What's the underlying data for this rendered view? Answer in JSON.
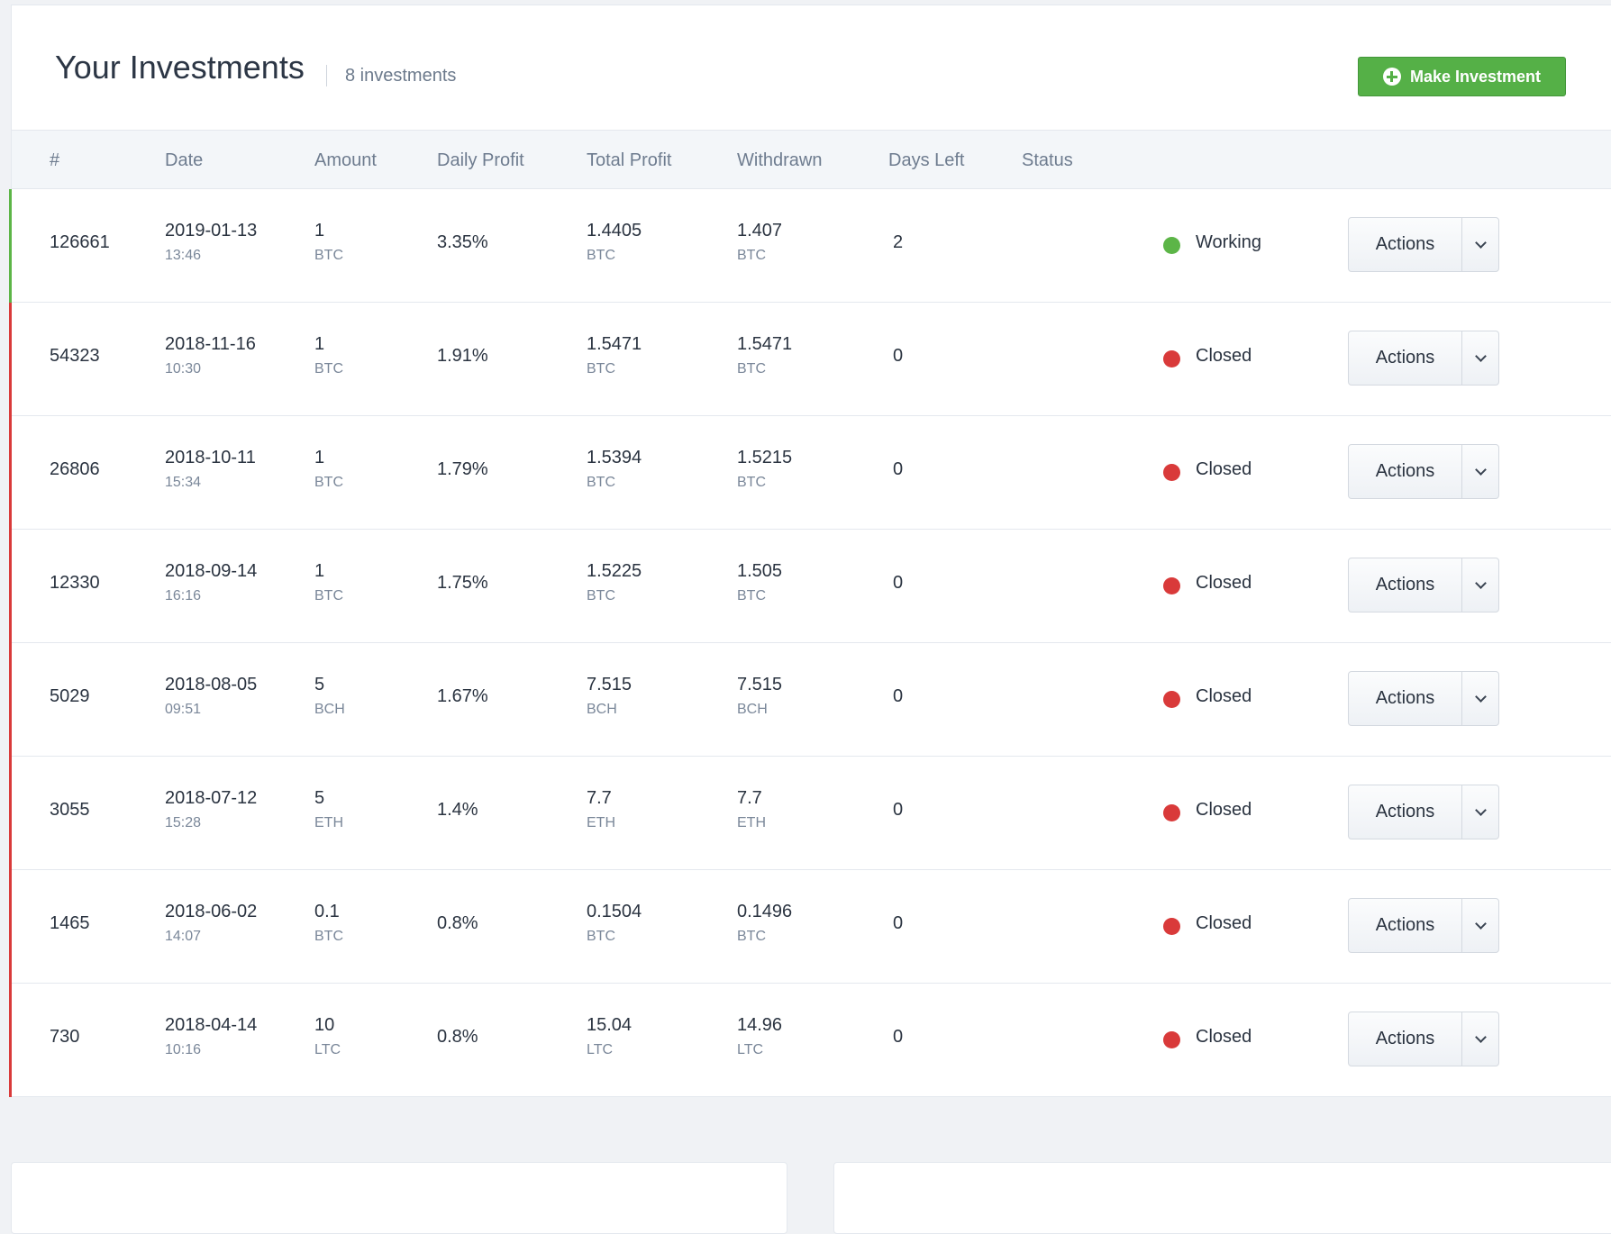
{
  "header": {
    "title": "Your Investments",
    "count": "8 investments",
    "make_button": "Make Investment"
  },
  "columns": [
    "#",
    "Date",
    "Amount",
    "Daily Profit",
    "Total Profit",
    "Withdrawn",
    "Days Left",
    "Status"
  ],
  "colors": {
    "working": "#5cb547",
    "closed": "#d93a3a",
    "accent": "#55b047"
  },
  "rows": [
    {
      "id": "126661",
      "date": "2019-01-13",
      "time": "13:46",
      "amount": "1",
      "amount_unit": "BTC",
      "daily": "3.35%",
      "total": "1.4405",
      "total_unit": "BTC",
      "withdrawn": "1.407",
      "withdrawn_unit": "BTC",
      "days_left": "2",
      "status": "Working",
      "actions": "Actions"
    },
    {
      "id": "54323",
      "date": "2018-11-16",
      "time": "10:30",
      "amount": "1",
      "amount_unit": "BTC",
      "daily": "1.91%",
      "total": "1.5471",
      "total_unit": "BTC",
      "withdrawn": "1.5471",
      "withdrawn_unit": "BTC",
      "days_left": "0",
      "status": "Closed",
      "actions": "Actions"
    },
    {
      "id": "26806",
      "date": "2018-10-11",
      "time": "15:34",
      "amount": "1",
      "amount_unit": "BTC",
      "daily": "1.79%",
      "total": "1.5394",
      "total_unit": "BTC",
      "withdrawn": "1.5215",
      "withdrawn_unit": "BTC",
      "days_left": "0",
      "status": "Closed",
      "actions": "Actions"
    },
    {
      "id": "12330",
      "date": "2018-09-14",
      "time": "16:16",
      "amount": "1",
      "amount_unit": "BTC",
      "daily": "1.75%",
      "total": "1.5225",
      "total_unit": "BTC",
      "withdrawn": "1.505",
      "withdrawn_unit": "BTC",
      "days_left": "0",
      "status": "Closed",
      "actions": "Actions"
    },
    {
      "id": "5029",
      "date": "2018-08-05",
      "time": "09:51",
      "amount": "5",
      "amount_unit": "BCH",
      "daily": "1.67%",
      "total": "7.515",
      "total_unit": "BCH",
      "withdrawn": "7.515",
      "withdrawn_unit": "BCH",
      "days_left": "0",
      "status": "Closed",
      "actions": "Actions"
    },
    {
      "id": "3055",
      "date": "2018-07-12",
      "time": "15:28",
      "amount": "5",
      "amount_unit": "ETH",
      "daily": "1.4%",
      "total": "7.7",
      "total_unit": "ETH",
      "withdrawn": "7.7",
      "withdrawn_unit": "ETH",
      "days_left": "0",
      "status": "Closed",
      "actions": "Actions"
    },
    {
      "id": "1465",
      "date": "2018-06-02",
      "time": "14:07",
      "amount": "0.1",
      "amount_unit": "BTC",
      "daily": "0.8%",
      "total": "0.1504",
      "total_unit": "BTC",
      "withdrawn": "0.1496",
      "withdrawn_unit": "BTC",
      "days_left": "0",
      "status": "Closed",
      "actions": "Actions"
    },
    {
      "id": "730",
      "date": "2018-04-14",
      "time": "10:16",
      "amount": "10",
      "amount_unit": "LTC",
      "daily": "0.8%",
      "total": "15.04",
      "total_unit": "LTC",
      "withdrawn": "14.96",
      "withdrawn_unit": "LTC",
      "days_left": "0",
      "status": "Closed",
      "actions": "Actions"
    }
  ]
}
